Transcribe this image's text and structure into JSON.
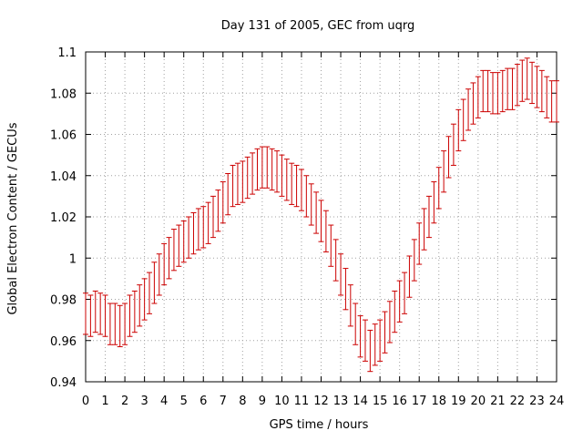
{
  "chart_data": {
    "type": "scatter",
    "title": "Day 131 of 2005, GEC from uqrg",
    "xlabel": "GPS time / hours",
    "ylabel": "Global Electron Content / GECUs",
    "xlim": [
      0,
      24
    ],
    "ylim": [
      0.94,
      1.1
    ],
    "grid": true,
    "error_bars": true,
    "color": "#cc0000",
    "x_ticks": [
      "0",
      "1",
      "2",
      "3",
      "4",
      "5",
      "6",
      "7",
      "8",
      "9",
      "10",
      "11",
      "12",
      "13",
      "14",
      "15",
      "16",
      "17",
      "18",
      "19",
      "20",
      "21",
      "22",
      "23",
      "24"
    ],
    "y_ticks": [
      "0.94",
      "0.96",
      "0.98",
      "1",
      "1.02",
      "1.04",
      "1.06",
      "1.08",
      "1.1"
    ],
    "series": [
      {
        "x": [
          0,
          0.25,
          0.5,
          0.75,
          1,
          1.25,
          1.5,
          1.75,
          2,
          2.25,
          2.5,
          2.75,
          3,
          3.25,
          3.5,
          3.75,
          4,
          4.25,
          4.5,
          4.75,
          5,
          5.25,
          5.5,
          5.75,
          6,
          6.25,
          6.5,
          6.75,
          7,
          7.25,
          7.5,
          7.75,
          8,
          8.25,
          8.5,
          8.75,
          9,
          9.25,
          9.5,
          9.75,
          10,
          10.25,
          10.5,
          10.75,
          11,
          11.25,
          11.5,
          11.75,
          12,
          12.25,
          12.5,
          12.75,
          13,
          13.25,
          13.5,
          13.75,
          14,
          14.25,
          14.5,
          14.75,
          15,
          15.25,
          15.5,
          15.75,
          16,
          16.25,
          16.5,
          16.75,
          17,
          17.25,
          17.5,
          17.75,
          18,
          18.25,
          18.5,
          18.75,
          19,
          19.25,
          19.5,
          19.75,
          20,
          20.25,
          20.5,
          20.75,
          21,
          21.25,
          21.5,
          21.75,
          22,
          22.25,
          22.5,
          22.75,
          23,
          23.25,
          23.5,
          23.75,
          24
        ],
        "y": [
          0.973,
          0.972,
          0.974,
          0.973,
          0.972,
          0.968,
          0.968,
          0.967,
          0.968,
          0.972,
          0.974,
          0.977,
          0.98,
          0.983,
          0.988,
          0.992,
          0.997,
          1.0,
          1.004,
          1.006,
          1.008,
          1.01,
          1.012,
          1.014,
          1.015,
          1.017,
          1.02,
          1.023,
          1.027,
          1.031,
          1.035,
          1.036,
          1.037,
          1.039,
          1.041,
          1.043,
          1.044,
          1.044,
          1.043,
          1.042,
          1.04,
          1.038,
          1.036,
          1.035,
          1.033,
          1.03,
          1.026,
          1.022,
          1.018,
          1.013,
          1.006,
          0.999,
          0.992,
          0.985,
          0.977,
          0.968,
          0.962,
          0.96,
          0.955,
          0.958,
          0.96,
          0.964,
          0.969,
          0.974,
          0.979,
          0.983,
          0.991,
          0.999,
          1.007,
          1.014,
          1.02,
          1.027,
          1.034,
          1.042,
          1.049,
          1.055,
          1.062,
          1.067,
          1.072,
          1.075,
          1.078,
          1.081,
          1.081,
          1.08,
          1.08,
          1.081,
          1.082,
          1.082,
          1.084,
          1.086,
          1.087,
          1.085,
          1.083,
          1.081,
          1.078,
          1.076,
          1.076
        ],
        "err": [
          0.01,
          0.01,
          0.01,
          0.01,
          0.01,
          0.01,
          0.01,
          0.01,
          0.01,
          0.01,
          0.01,
          0.01,
          0.01,
          0.01,
          0.01,
          0.01,
          0.01,
          0.01,
          0.01,
          0.01,
          0.01,
          0.01,
          0.01,
          0.01,
          0.01,
          0.01,
          0.01,
          0.01,
          0.01,
          0.01,
          0.01,
          0.01,
          0.01,
          0.01,
          0.01,
          0.01,
          0.01,
          0.01,
          0.01,
          0.01,
          0.01,
          0.01,
          0.01,
          0.01,
          0.01,
          0.01,
          0.01,
          0.01,
          0.01,
          0.01,
          0.01,
          0.01,
          0.01,
          0.01,
          0.01,
          0.01,
          0.01,
          0.01,
          0.01,
          0.01,
          0.01,
          0.01,
          0.01,
          0.01,
          0.01,
          0.01,
          0.01,
          0.01,
          0.01,
          0.01,
          0.01,
          0.01,
          0.01,
          0.01,
          0.01,
          0.01,
          0.01,
          0.01,
          0.01,
          0.01,
          0.01,
          0.01,
          0.01,
          0.01,
          0.01,
          0.01,
          0.01,
          0.01,
          0.01,
          0.01,
          0.01,
          0.01,
          0.01,
          0.01,
          0.01,
          0.01,
          0.01
        ]
      }
    ]
  }
}
